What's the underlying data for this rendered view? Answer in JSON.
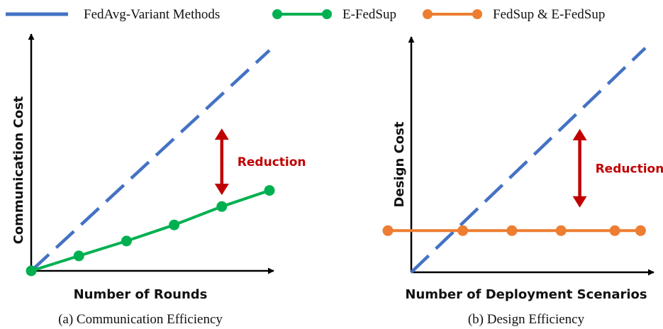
{
  "legend": {
    "items": [
      {
        "label": "FedAvg-Variant Methods",
        "style": "dashed",
        "color": "#4472C4"
      },
      {
        "label": "E-FedSup",
        "style": "line-marker",
        "color": "#00B050"
      },
      {
        "label": "FedSup & E-FedSup",
        "style": "line-marker",
        "color": "#ED7D31"
      }
    ]
  },
  "colors": {
    "fedavg": "#4472C4",
    "efedsup": "#00B050",
    "fedsup": "#ED7D31",
    "reduction": "#C00000",
    "axis": "#000000"
  },
  "chart_data": [
    {
      "type": "line",
      "caption": "(a) Communication Efficiency",
      "xlabel": "Number of Rounds",
      "ylabel": "Communication Cost",
      "xlim": [
        0,
        10
      ],
      "ylim": [
        0,
        10
      ],
      "grid": false,
      "tick_labels": false,
      "annotation": {
        "text": "Reduction",
        "arrow_x": 8.0,
        "arrow_from_y": 6.2,
        "arrow_to_y": 3.3
      },
      "series": [
        {
          "name": "FedAvg-Variant Methods",
          "style": "dashed",
          "x": [
            0,
            10
          ],
          "y": [
            0,
            9.6
          ]
        },
        {
          "name": "E-FedSup",
          "style": "line-marker",
          "x": [
            0,
            2,
            4,
            6,
            8,
            10
          ],
          "y": [
            0,
            0.65,
            1.3,
            2.0,
            2.8,
            3.5
          ]
        }
      ]
    },
    {
      "type": "line",
      "caption": "(b) Design Efficiency",
      "xlabel": "Number of Deployment Scenarios",
      "ylabel": "Design Cost",
      "xlim": [
        0,
        10
      ],
      "ylim": [
        0,
        10
      ],
      "grid": false,
      "tick_labels": false,
      "annotation": {
        "text": "Reduction",
        "arrow_x": 7.2,
        "arrow_from_y": 6.2,
        "arrow_to_y": 2.8
      },
      "series": [
        {
          "name": "FedAvg-Variant Methods",
          "style": "dashed",
          "x": [
            0,
            10
          ],
          "y": [
            0,
            9.7
          ]
        },
        {
          "name": "FedSup & E-FedSup",
          "style": "line-marker",
          "x": [
            -1.0,
            2.2,
            4.3,
            6.4,
            8.7,
            9.8
          ],
          "y": [
            1.8,
            1.8,
            1.8,
            1.8,
            1.8,
            1.8
          ]
        }
      ]
    }
  ]
}
